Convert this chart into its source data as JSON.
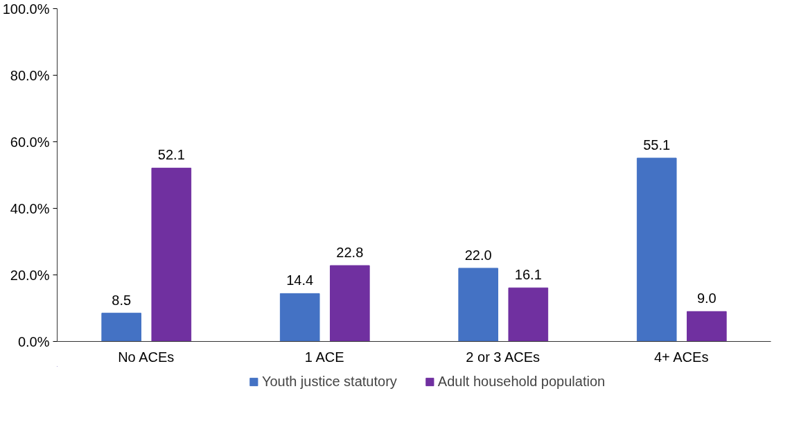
{
  "chart_data": {
    "type": "bar",
    "categories": [
      "No ACEs",
      "1 ACE",
      "2 or 3 ACEs",
      "4+ ACEs"
    ],
    "series": [
      {
        "name": "Youth justice statutory",
        "color": "#4472c4",
        "values": [
          8.5,
          14.4,
          22.0,
          55.1
        ],
        "value_labels": [
          "8.5",
          "14.4",
          "22.0",
          "55.1"
        ]
      },
      {
        "name": "Adult household population",
        "color": "#7030a0",
        "values": [
          52.1,
          22.8,
          16.1,
          9.0
        ],
        "value_labels": [
          "52.1",
          "22.8",
          "16.1",
          "9.0"
        ]
      }
    ],
    "ylim": [
      0,
      100
    ],
    "yticks": [
      {
        "value": 0,
        "label": "0.0%"
      },
      {
        "value": 20,
        "label": "20.0%"
      },
      {
        "value": 40,
        "label": "40.0%"
      },
      {
        "value": 60,
        "label": "60.0%"
      },
      {
        "value": 80,
        "label": "80.0%"
      },
      {
        "value": 100,
        "label": "100.0%"
      }
    ],
    "grid": false,
    "legend": "bottom"
  }
}
